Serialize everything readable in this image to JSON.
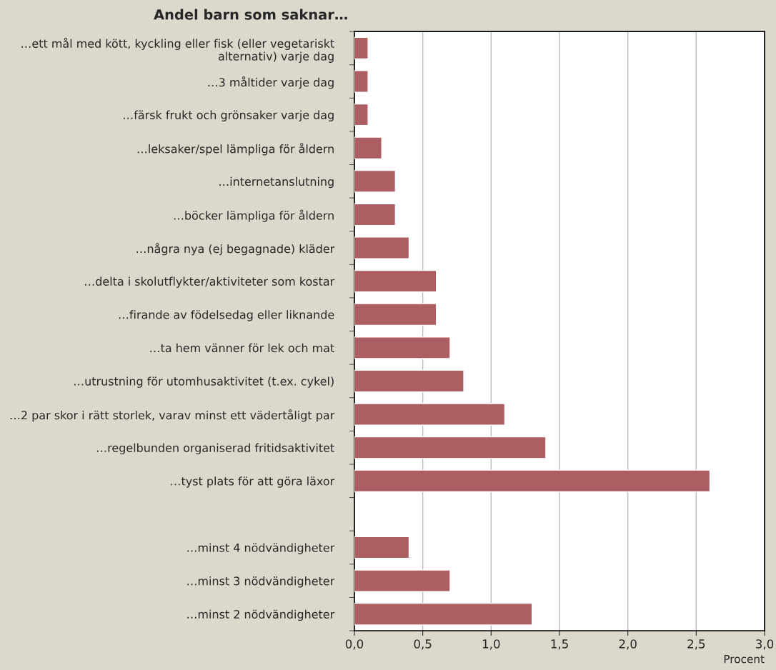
{
  "chart_data": {
    "type": "bar",
    "orientation": "horizontal",
    "title": "Andel barn som saknar…",
    "xlabel": "Procent",
    "categories": [
      "…ett mål med kött, kyckling eller fisk (eller vegetariskt\nalternativ) varje dag",
      "…3 måltider varje dag",
      "…färsk frukt och grönsaker varje dag",
      "…leksaker/spel lämpliga för åldern",
      "…internetanslutning",
      "…böcker lämpliga för åldern",
      "…några nya (ej begagnade) kläder",
      "…delta i skolutflykter/aktiviteter som kostar",
      "…firande av födelsedag eller liknande",
      "…ta hem vänner för lek och mat",
      "…utrustning för utomhusaktivitet (t.ex. cykel)",
      "…2 par skor i rätt storlek, varav minst ett vädertåligt par",
      "…regelbunden organiserad fritidsaktivitet",
      "…tyst plats för att göra läxor",
      null,
      "…minst 4 nödvändigheter",
      "…minst 3 nödvändigheter",
      "…minst 2 nödvändigheter"
    ],
    "values": [
      0.1,
      0.1,
      0.1,
      0.2,
      0.3,
      0.3,
      0.4,
      0.6,
      0.6,
      0.7,
      0.8,
      1.1,
      1.4,
      2.6,
      null,
      0.4,
      0.7,
      1.3
    ],
    "color": "#ad5e63",
    "xlim": [
      0,
      3
    ],
    "xticks": [
      {
        "value": 0,
        "label": "0,0"
      },
      {
        "value": 0.5,
        "label": "0,5"
      },
      {
        "value": 1,
        "label": "1,0"
      },
      {
        "value": 1.5,
        "label": "1,5"
      },
      {
        "value": 2,
        "label": "2,0"
      },
      {
        "value": 2.5,
        "label": "2,5"
      },
      {
        "value": 3,
        "label": "3,0"
      }
    ],
    "grid": "x",
    "legend": false
  }
}
